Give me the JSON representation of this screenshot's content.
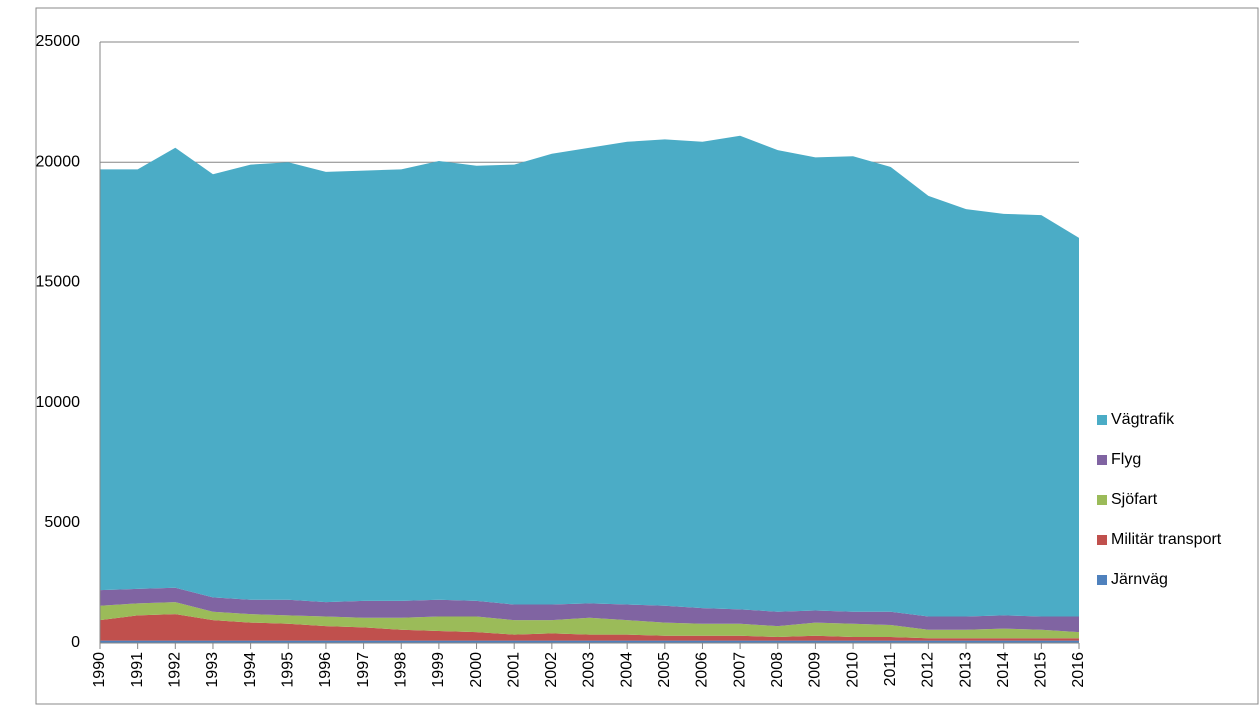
{
  "chart_data": {
    "type": "stacked_area",
    "categories": [
      "1990",
      "1991",
      "1992",
      "1993",
      "1994",
      "1995",
      "1996",
      "1997",
      "1998",
      "1999",
      "2000",
      "2001",
      "2002",
      "2003",
      "2004",
      "2005",
      "2006",
      "2007",
      "2008",
      "2009",
      "2010",
      "2011",
      "2012",
      "2013",
      "2014",
      "2015",
      "2016"
    ],
    "series": [
      {
        "name": "Järnväg",
        "color": "#4f81bd",
        "values": [
          100,
          100,
          100,
          100,
          100,
          100,
          100,
          100,
          100,
          100,
          100,
          100,
          100,
          100,
          100,
          100,
          100,
          100,
          100,
          100,
          100,
          100,
          100,
          100,
          100,
          100,
          100
        ]
      },
      {
        "name": "Militär transport",
        "color": "#c0504d",
        "values": [
          850,
          1050,
          1100,
          850,
          750,
          700,
          600,
          550,
          450,
          400,
          350,
          250,
          300,
          250,
          250,
          200,
          200,
          200,
          150,
          200,
          150,
          150,
          100,
          100,
          100,
          100,
          100
        ]
      },
      {
        "name": "Sjöfart",
        "color": "#9bbb59",
        "values": [
          600,
          500,
          500,
          350,
          350,
          350,
          400,
          400,
          500,
          600,
          650,
          600,
          550,
          700,
          600,
          550,
          500,
          500,
          450,
          550,
          550,
          500,
          350,
          350,
          400,
          350,
          250
        ]
      },
      {
        "name": "Flyg",
        "color": "#8064a2",
        "values": [
          650,
          600,
          600,
          600,
          600,
          650,
          600,
          700,
          700,
          700,
          650,
          650,
          650,
          600,
          650,
          700,
          650,
          600,
          600,
          500,
          500,
          550,
          550,
          550,
          550,
          550,
          650
        ]
      },
      {
        "name": "Vägtrafik",
        "color": "#4bacc6",
        "values": [
          17500,
          17450,
          18300,
          17600,
          18100,
          18200,
          17900,
          17900,
          17950,
          18250,
          18100,
          18300,
          18750,
          18950,
          19250,
          19400,
          19400,
          19700,
          19200,
          18850,
          18950,
          18500,
          17500,
          16950,
          16700,
          16700,
          15750
        ]
      }
    ],
    "ylim": [
      0,
      25000
    ],
    "yticks": [
      0,
      5000,
      10000,
      15000,
      20000,
      25000
    ],
    "grid": true,
    "legend": "right"
  }
}
